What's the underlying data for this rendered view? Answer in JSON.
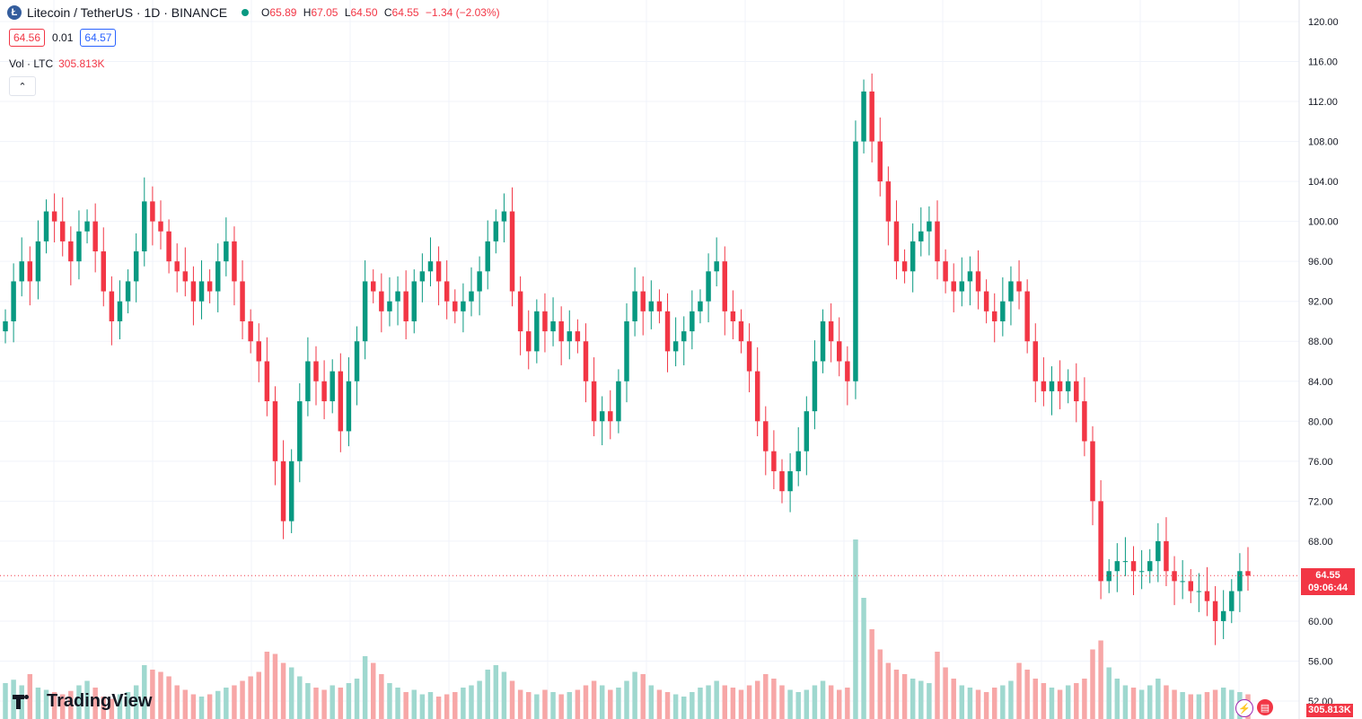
{
  "header": {
    "symbol": "Litecoin / TetherUS · 1D · BINANCE",
    "logo_icon": "litecoin-icon",
    "logo_glyph": "Ł",
    "ohlc": {
      "o_label": "O",
      "o": "65.89",
      "h_label": "H",
      "h": "67.05",
      "l_label": "L",
      "l": "64.50",
      "c_label": "C",
      "c": "64.55",
      "change": "−1.34 (−2.03%)"
    }
  },
  "quote": {
    "sell": "64.56",
    "spread": "0.01",
    "buy": "64.57"
  },
  "volume_legend": {
    "label": "Vol · LTC",
    "value": "305.813K"
  },
  "collapse_glyph": "⌃",
  "last_price": {
    "price": "64.55",
    "countdown": "09:06:44"
  },
  "volume_tag": "305.813K",
  "brand": "TradingView",
  "bottom": {
    "bolt_glyph": "⚡",
    "flag_glyph": "▤"
  },
  "colors": {
    "up": "#089981",
    "down": "#f23645",
    "vol_up": "#9fd8cf",
    "vol_down": "#f7a7a7",
    "grid": "#f0f3fa"
  },
  "chart_data": {
    "type": "candlestick",
    "yaxis": {
      "min": 52,
      "max": 120,
      "step": 4,
      "tick_labels": [
        "52.00",
        "56.00",
        "60.00",
        "64.00",
        "68.00",
        "72.00",
        "76.00",
        "80.00",
        "84.00",
        "88.00",
        "92.00",
        "96.00",
        "100.00",
        "104.00",
        "108.00",
        "112.00",
        "116.00",
        "120.00"
      ]
    },
    "last_price": 64.55,
    "closes": [
      90,
      94,
      96,
      94,
      98,
      101,
      100,
      98,
      96,
      99,
      100,
      97,
      93,
      90,
      92,
      94,
      97,
      102,
      100,
      99,
      96,
      95,
      94,
      92,
      94,
      93,
      96,
      98,
      94,
      90,
      88,
      86,
      82,
      76,
      70,
      76,
      82,
      86,
      84,
      82,
      85,
      79,
      84,
      88,
      94,
      93,
      91,
      92,
      93,
      90,
      94,
      95,
      96,
      94,
      92,
      91,
      92,
      93,
      95,
      98,
      100,
      101,
      93,
      89,
      87,
      91,
      89,
      90,
      88,
      89,
      88,
      84,
      80,
      81,
      80,
      84,
      90,
      93,
      91,
      92,
      91,
      87,
      88,
      89,
      91,
      92,
      95,
      96,
      91,
      90,
      88,
      85,
      80,
      77,
      75,
      73,
      75,
      77,
      81,
      86,
      90,
      88,
      86,
      84,
      108,
      113,
      108,
      104,
      100,
      96,
      95,
      98,
      99,
      100,
      96,
      94,
      93,
      94,
      95,
      93,
      91,
      90,
      92,
      94,
      93,
      88,
      84,
      83,
      84,
      83,
      84,
      82,
      78,
      72,
      64,
      65,
      66,
      66,
      65,
      65,
      66,
      68,
      65,
      64,
      64,
      63,
      63,
      62,
      60,
      61,
      63,
      65,
      64.55
    ],
    "volumes": [
      32,
      35,
      30,
      40,
      28,
      26,
      24,
      22,
      25,
      30,
      34,
      28,
      20,
      18,
      22,
      24,
      30,
      48,
      44,
      42,
      38,
      30,
      26,
      22,
      20,
      22,
      25,
      28,
      30,
      34,
      38,
      42,
      60,
      58,
      50,
      46,
      38,
      32,
      28,
      26,
      30,
      28,
      32,
      36,
      56,
      50,
      40,
      32,
      28,
      24,
      26,
      22,
      24,
      20,
      22,
      24,
      28,
      30,
      34,
      44,
      48,
      42,
      34,
      26,
      24,
      22,
      26,
      24,
      22,
      24,
      26,
      30,
      34,
      30,
      26,
      28,
      34,
      42,
      40,
      30,
      26,
      24,
      22,
      20,
      24,
      28,
      30,
      34,
      30,
      28,
      26,
      30,
      34,
      40,
      36,
      30,
      26,
      24,
      26,
      30,
      34,
      30,
      26,
      28,
      160,
      108,
      80,
      62,
      50,
      44,
      40,
      36,
      34,
      32,
      60,
      46,
      36,
      30,
      28,
      26,
      24,
      28,
      30,
      34,
      50,
      44,
      36,
      32,
      28,
      26,
      30,
      32,
      36,
      62,
      70,
      46,
      36,
      30,
      28,
      26,
      30,
      36,
      30,
      26,
      24,
      22,
      22,
      24,
      26,
      28,
      26,
      24,
      22
    ]
  }
}
